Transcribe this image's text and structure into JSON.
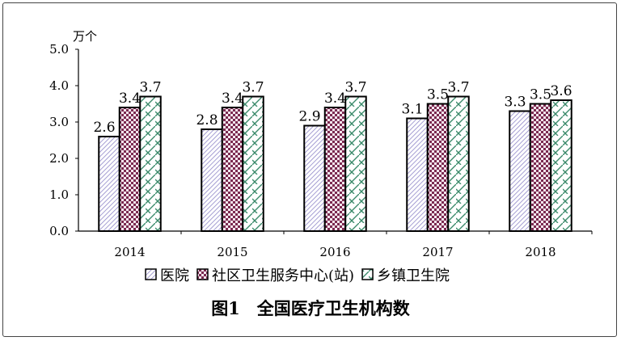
{
  "chart_data": {
    "type": "bar",
    "title": "图1　全国医疗卫生机构数",
    "ylabel": "万个",
    "ylim": [
      0,
      5
    ],
    "yticks": [
      "0.0",
      "1.0",
      "2.0",
      "3.0",
      "4.0",
      "5.0"
    ],
    "categories": [
      "2014",
      "2015",
      "2016",
      "2017",
      "2018"
    ],
    "series": [
      {
        "name": "医院",
        "values": [
          2.6,
          2.8,
          2.9,
          3.1,
          3.3
        ],
        "pattern": "diagonal-hatch",
        "color": "#8f86c8"
      },
      {
        "name": "社区卫生服务中心(站)",
        "values": [
          3.4,
          3.4,
          3.4,
          3.5,
          3.5
        ],
        "pattern": "checker",
        "color": "#7b2a50"
      },
      {
        "name": "乡镇卫生院",
        "values": [
          3.7,
          3.7,
          3.7,
          3.7,
          3.6
        ],
        "pattern": "crosshatch",
        "color": "#3a8a6a"
      }
    ],
    "grid": false,
    "legend": "bottom"
  }
}
